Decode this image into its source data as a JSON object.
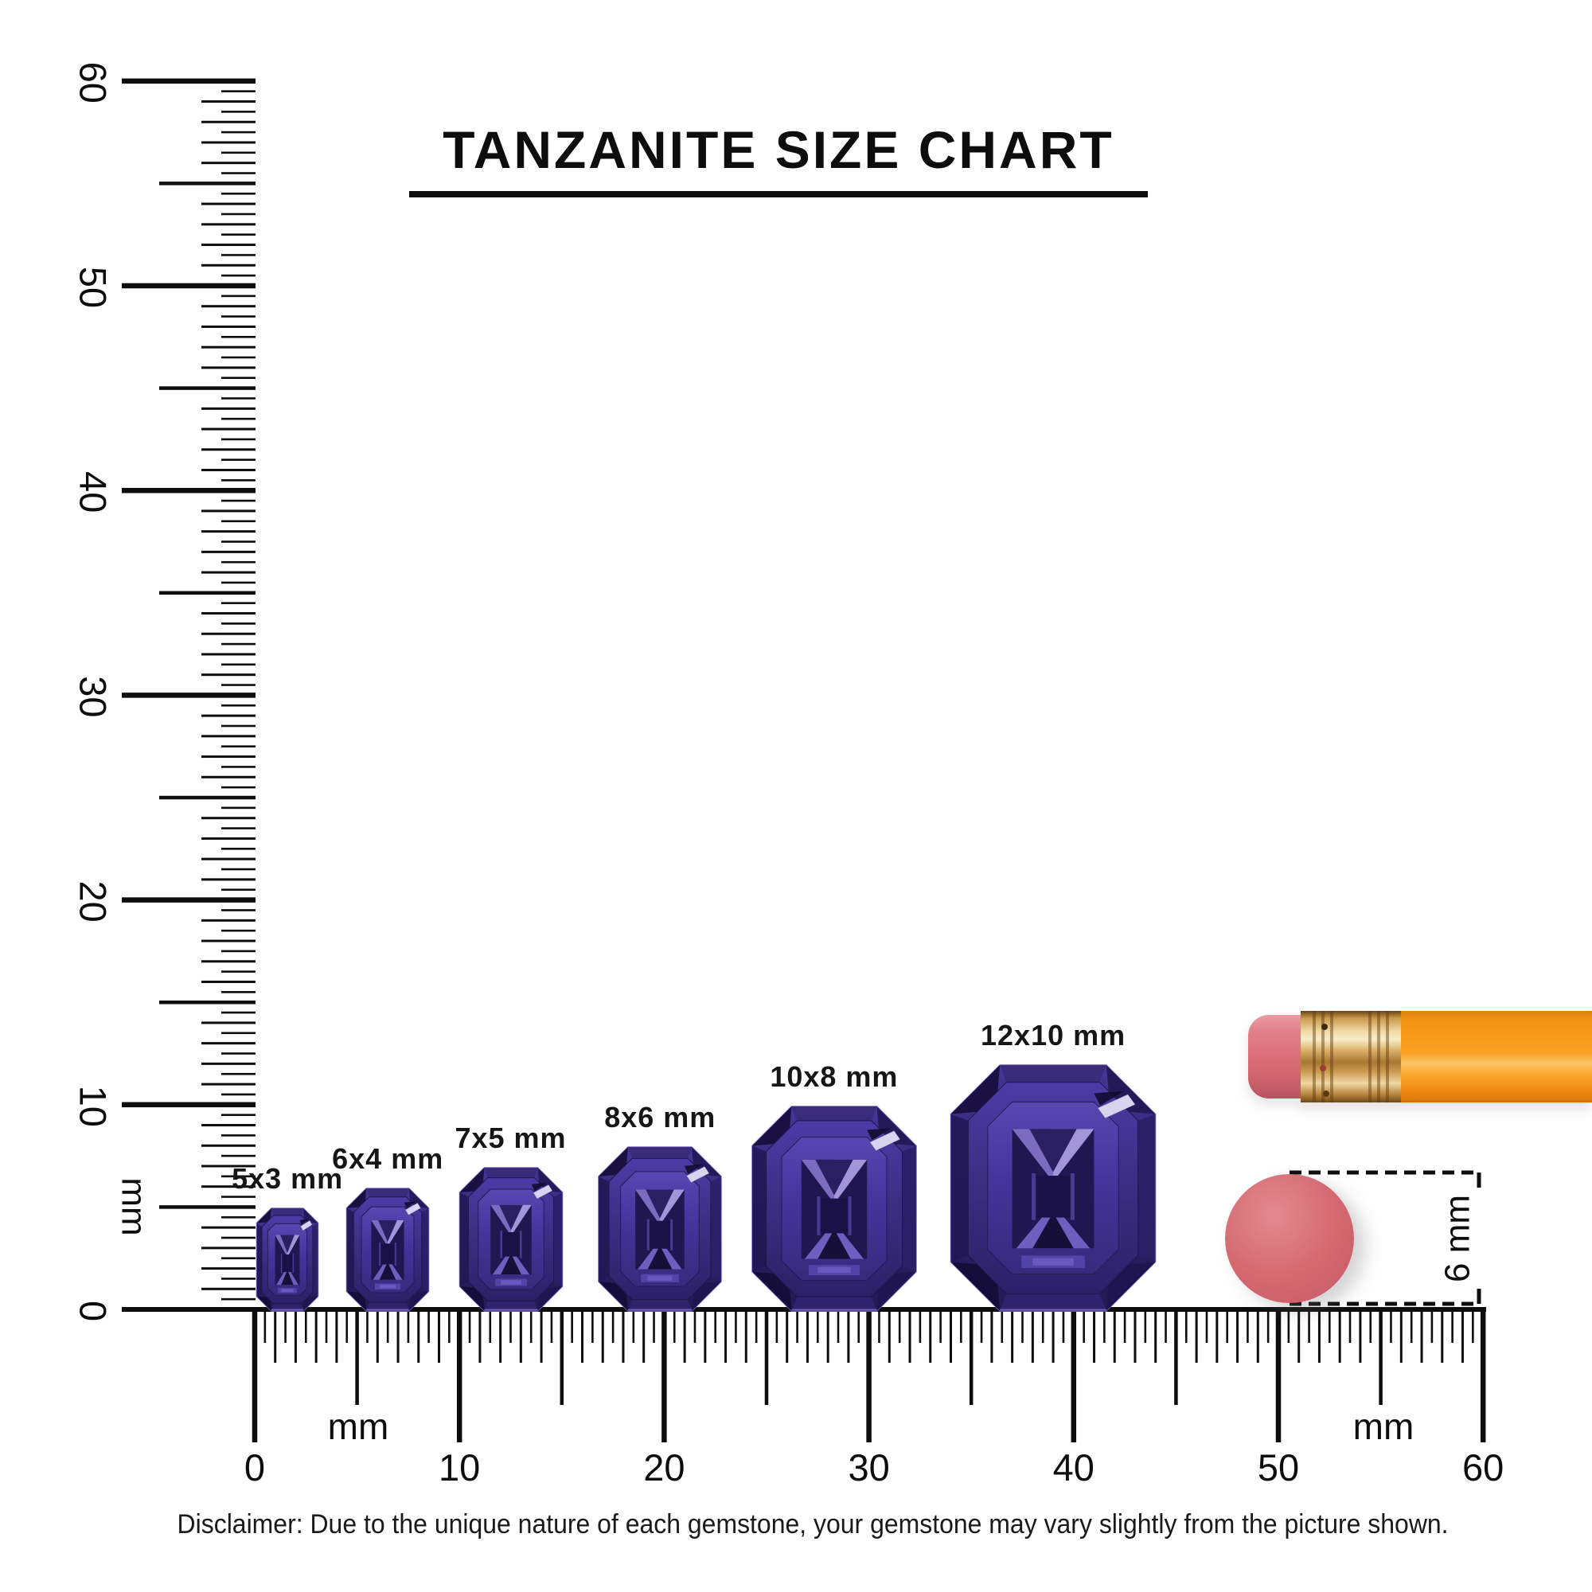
{
  "title": "TANZANITE SIZE CHART",
  "disclaimer": "Disclaimer: Due to the unique nature of each gemstone, your gemstone may vary slightly from the picture shown.",
  "chart_data": {
    "type": "size-comparison-diagram",
    "title": "TANZANITE SIZE CHART",
    "unit": "mm",
    "gems": [
      {
        "label": "5x3 mm",
        "length_mm": 5,
        "width_mm": 3,
        "center_x_mm": 1.6
      },
      {
        "label": "6x4 mm",
        "length_mm": 6,
        "width_mm": 4,
        "center_x_mm": 6.5
      },
      {
        "label": "7x5 mm",
        "length_mm": 7,
        "width_mm": 5,
        "center_x_mm": 12.5
      },
      {
        "label": "8x6 mm",
        "length_mm": 8,
        "width_mm": 6,
        "center_x_mm": 19.8
      },
      {
        "label": "10x8 mm",
        "length_mm": 10,
        "width_mm": 8,
        "center_x_mm": 28.3
      },
      {
        "label": "12x10 mm",
        "length_mm": 12,
        "width_mm": 10,
        "center_x_mm": 39.0
      }
    ],
    "left_ruler": {
      "min_mm": 0,
      "max_mm": 60,
      "tick_step_mm": 0.5,
      "number_labels": [
        "0",
        "10",
        "20",
        "30",
        "40",
        "50",
        "60"
      ],
      "unit_label": "mm"
    },
    "bottom_ruler": {
      "min_mm": 0,
      "max_mm": 60,
      "tick_step_mm": 0.5,
      "number_labels": [
        "0",
        "10",
        "20",
        "30",
        "40",
        "50",
        "60"
      ],
      "unit_labels": [
        "mm",
        "mm"
      ]
    },
    "eraser_annotation": {
      "label": "6 mm",
      "diameter_mm": 6.3
    }
  },
  "pencil": {
    "eraser_color": "#db717c",
    "ferrule_color": "#e3bc72",
    "body_color": "#f89b1b"
  },
  "colors": {
    "ink": "#0d0d0d",
    "background": "#ffffff",
    "eraser_disc": "#d4686f"
  },
  "gem_palette": {
    "outer_top": "#46369a",
    "outer_mid": "#3a2c80",
    "outer_bottom": "#241a54",
    "corner_dark": "#1a1142",
    "side_left": "#221857",
    "side_right": "#2a1f66",
    "top_facet": "#382a78",
    "bottom_facet": "#322570",
    "ring1_top": "#4c3ba6",
    "ring1_mid": "#3b2d80",
    "ring1_bottom": "#2c2068",
    "ring2_top": "#5847b2",
    "ring2_mid": "#45349c",
    "ring2_bottom": "#372a7c",
    "table": "#201650",
    "wing_left": "#7c6cc0",
    "wing_right": "#a395da",
    "notch_dark": "#2a1f60",
    "bottom_wing": "#6e5ec0",
    "bottom_notch": "#161038",
    "column_dark": "#1a1246",
    "column_strip": "#5a49ae",
    "glow": "#5748ae",
    "glow_bright": "#7a68d0",
    "sparkle": "#d8d3ee",
    "sparkle_shadow": "#120c30",
    "edge_light": "#7c68c8",
    "bottom_edge": "#8a76d6"
  }
}
